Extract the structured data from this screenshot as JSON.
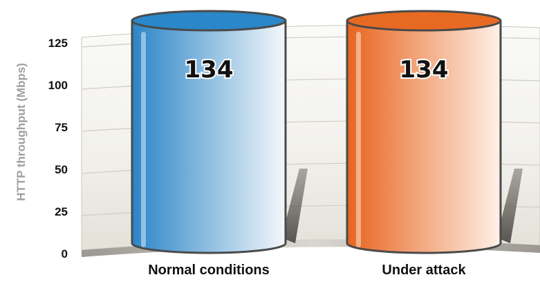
{
  "chart_data": {
    "type": "bar",
    "categories": [
      "Normal conditions",
      "Under attack"
    ],
    "values": [
      134,
      134
    ],
    "value_labels": [
      "134",
      "134"
    ],
    "ylabel": "HTTP throughput (Mbps)",
    "yticks": [
      "0",
      "25",
      "50",
      "75",
      "100",
      "125"
    ],
    "ylim": [
      0,
      134
    ],
    "grid": true,
    "colors": {
      "series": [
        "#2a85c7",
        "#e8641e"
      ],
      "series_light": [
        "#f4f7fb",
        "#fef1e8"
      ],
      "top": [
        "#2a87c9",
        "#e86a22"
      ],
      "outline": "#4a4a4a"
    }
  }
}
